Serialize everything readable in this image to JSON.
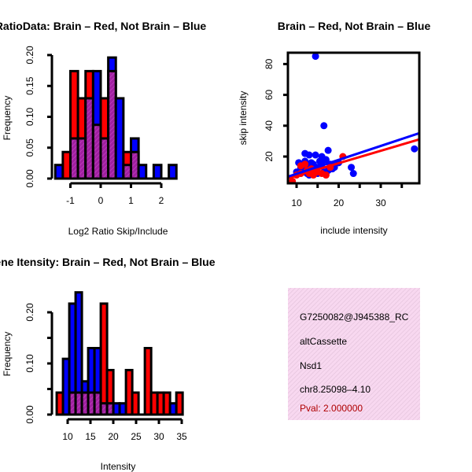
{
  "chart_data": [
    {
      "type": "bar",
      "title": "RatioData: Brain – Red, Not Brain – Blue",
      "xlabel": "Log2 Ratio Skip/Include",
      "ylabel": "Frequency",
      "xticks": [
        -1,
        0,
        1,
        2
      ],
      "yticks": [
        "0.00",
        "0.05",
        "0.10",
        "0.15",
        "0.20"
      ],
      "xlim": [
        -1.5,
        2.5
      ],
      "ylim": [
        0,
        0.2
      ],
      "bin_start": -1.5,
      "bin_width": 0.25,
      "series": [
        {
          "name": "Brain",
          "color": "#ff0000",
          "values": [
            0,
            0.043,
            0.174,
            0.13,
            0.174,
            0.087,
            0.13,
            0.174,
            0,
            0.043,
            0.043,
            0,
            0,
            0,
            0,
            0
          ]
        },
        {
          "name": "Not Brain",
          "color": "#0000ff",
          "values": [
            0.022,
            0,
            0.065,
            0.065,
            0.13,
            0.174,
            0.065,
            0.196,
            0.13,
            0.022,
            0.065,
            0.022,
            0,
            0.022,
            0,
            0.022
          ]
        }
      ],
      "overlap_color": "#a020a0"
    },
    {
      "type": "scatter",
      "title": "Brain – Red, Not Brain – Blue",
      "xlabel": "include intensity",
      "ylabel": "skip intensity",
      "xticks": [
        10,
        20,
        30
      ],
      "yticks": [
        20,
        40,
        60,
        80
      ],
      "xlim": [
        8,
        39
      ],
      "ylim": [
        3,
        88
      ],
      "series": [
        {
          "name": "Brain",
          "color": "#ff0000",
          "points": [
            [
              9,
              4
            ],
            [
              10,
              8
            ],
            [
              11,
              9
            ],
            [
              12,
              15
            ],
            [
              12.5,
              11
            ],
            [
              13,
              9
            ],
            [
              14,
              8
            ],
            [
              15,
              10
            ],
            [
              16,
              9
            ],
            [
              17,
              8
            ],
            [
              18,
              13
            ],
            [
              21,
              20
            ],
            [
              11,
              14
            ],
            [
              13.5,
              12
            ]
          ],
          "fit": [
            [
              8,
              6
            ],
            [
              39,
              31
            ]
          ]
        },
        {
          "name": "Not Brain",
          "color": "#0000ff",
          "points": [
            [
              14.5,
              85
            ],
            [
              16.5,
              40
            ],
            [
              38,
              25
            ],
            [
              23,
              13
            ],
            [
              23.5,
              9
            ],
            [
              17.5,
              24
            ],
            [
              16,
              20
            ],
            [
              12,
              22
            ],
            [
              13,
              21
            ],
            [
              14.5,
              21
            ],
            [
              10.5,
              16
            ],
            [
              11,
              13
            ],
            [
              11.5,
              10
            ],
            [
              12,
              12
            ],
            [
              12.5,
              9
            ],
            [
              13,
              14
            ],
            [
              13.5,
              16
            ],
            [
              14,
              11
            ],
            [
              15,
              13
            ],
            [
              15.5,
              17
            ],
            [
              16,
              15
            ],
            [
              17,
              18
            ],
            [
              17.5,
              11
            ],
            [
              18,
              15
            ],
            [
              18.5,
              12
            ],
            [
              19,
              14
            ],
            [
              20,
              16
            ],
            [
              15,
              9
            ],
            [
              10,
              10
            ],
            [
              11,
              12
            ],
            [
              16.5,
              10
            ],
            [
              13,
              8
            ],
            [
              12,
              17
            ],
            [
              14,
              15
            ],
            [
              19,
              13
            ]
          ],
          "fit": [
            [
              8,
              7
            ],
            [
              39,
              35
            ]
          ]
        }
      ]
    },
    {
      "type": "bar",
      "title": "Gene Itensity: Brain – Red, Not Brain – Blue",
      "xlabel": "Intensity",
      "ylabel": "Frequency",
      "xticks": [
        10,
        15,
        20,
        25,
        30,
        35
      ],
      "yticks": [
        "0.00",
        "0.10",
        "0.20"
      ],
      "ylim": [
        0,
        0.25
      ],
      "bin_start": 7.6,
      "bin_width": 1.38,
      "series": [
        {
          "name": "Brain",
          "color": "#ff0000",
          "values": [
            0.043,
            0,
            0.043,
            0.043,
            0.043,
            0.043,
            0.043,
            0.217,
            0.087,
            0,
            0,
            0.087,
            0.043,
            0,
            0.13,
            0.043,
            0.043,
            0.043,
            0,
            0.043
          ]
        },
        {
          "name": "Not Brain",
          "color": "#0000ff",
          "values": [
            0,
            0.109,
            0.217,
            0.239,
            0.065,
            0.13,
            0.13,
            0.022,
            0.022,
            0.022,
            0.022,
            0,
            0,
            0,
            0,
            0,
            0,
            0,
            0.022,
            0
          ]
        }
      ],
      "overlap_color": "#a020a0"
    }
  ],
  "info_panel": {
    "lines": [
      "G7250082@J945388_RC",
      "altCassette",
      "Nsd1",
      "chr8.25098–4.10"
    ],
    "pval": "Pval: 2.000000",
    "pval_color": "#b00000"
  }
}
